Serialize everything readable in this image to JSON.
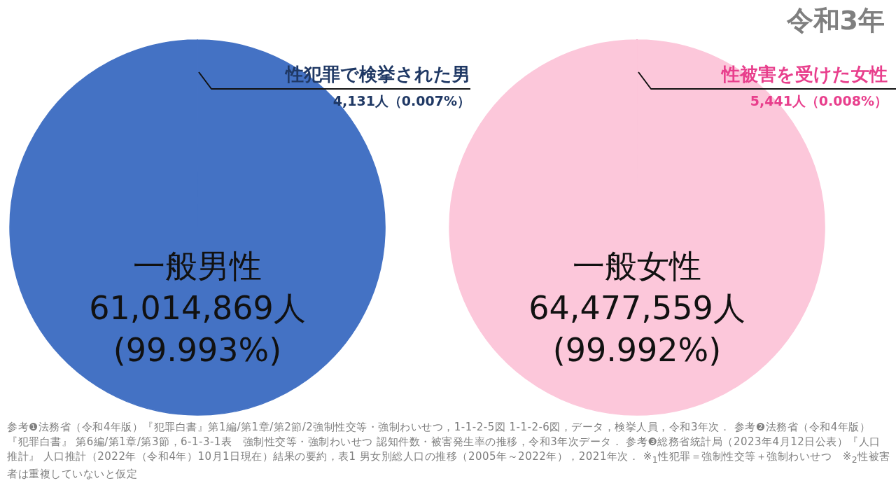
{
  "chart_data": [
    {
      "type": "pie",
      "categories": [
        "性犯罪で検挙された男",
        "一般男性"
      ],
      "values": [
        4131,
        61014869
      ],
      "colors": [
        "#c9d3ec",
        "#4472c4"
      ],
      "value_labels": [
        "4,131人（0.007%）",
        "61,014,869人\n(99.993%)"
      ],
      "annotations": [
        "参考❶法務省（令和4年版）『犯罪白書』第1編/第1章/第2節/2強制性交等・強制わいせつ，1-1-2-5図 1-1-2-6図，データ，検挙人員，令和3年次． 参考❷法務省（令和4年版）『犯罪白書』 第6編/第1章/第3節，6-1-3-1表　強制性交等・強制わいせつ 認知件数・被害発生率の推移，令和3年次データ． 参考❸総務省統計局（2023年4月12日公表）『人口推計』 人口推計（2022年（令和4年）10月1日現在）結果の要約，表1 男女別総人口の推移（2005年～2022年），2021年次． ※$_{1}$性犯罪＝強制性交等＋強制わいせつ　※$_{2}$性被害者は重複していないと仮定"
      ]
    },
    {
      "type": "pie",
      "title": "令和3年",
      "categories": [
        "性被害を受けた女性",
        "一般女性"
      ],
      "values": [
        5441,
        64477559
      ],
      "colors": [
        "#e0609f",
        "#fcc7da"
      ],
      "value_labels": [
        "5,441人（0.008%）",
        "64,477,559人\n(99.992%)"
      ]
    }
  ]
}
